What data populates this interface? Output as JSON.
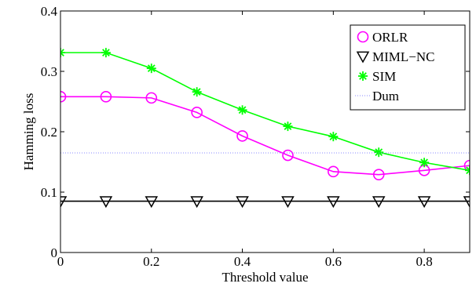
{
  "chart_data": {
    "type": "line",
    "title": "",
    "xlabel": "Threshold value",
    "ylabel": "Hamming loss",
    "xlim": [
      0,
      0.9
    ],
    "ylim": [
      0,
      0.4
    ],
    "x_ticks": [
      "0",
      "0.2",
      "0.4",
      "0.6",
      "0.8"
    ],
    "y_ticks": [
      "0",
      "0.1",
      "0.2",
      "0.3",
      "0.4"
    ],
    "x": [
      0,
      0.1,
      0.2,
      0.3,
      0.4,
      0.5,
      0.6,
      0.7,
      0.8,
      0.9
    ],
    "series": [
      {
        "name": "ORLR",
        "marker": "circle",
        "color": "#ff00ff",
        "values": [
          0.258,
          0.258,
          0.256,
          0.232,
          0.193,
          0.161,
          0.134,
          0.129,
          0.136,
          0.144
        ]
      },
      {
        "name": "MIML−NC",
        "marker": "triangle-down",
        "color": "#000000",
        "values": [
          0.085,
          0.085,
          0.085,
          0.085,
          0.085,
          0.085,
          0.085,
          0.085,
          0.085,
          0.085
        ]
      },
      {
        "name": "SIM",
        "marker": "asterisk",
        "color": "#00ff00",
        "values": [
          0.331,
          0.331,
          0.305,
          0.266,
          0.236,
          0.209,
          0.192,
          0.166,
          0.149,
          0.136
        ]
      },
      {
        "name": "Dum",
        "marker": "none",
        "line": "dotted",
        "color": "#8a8aff",
        "values": [
          0.165,
          0.165,
          0.165,
          0.165,
          0.165,
          0.165,
          0.165,
          0.165,
          0.165,
          0.165
        ]
      }
    ],
    "grid": false,
    "legend_position": "top-right"
  }
}
